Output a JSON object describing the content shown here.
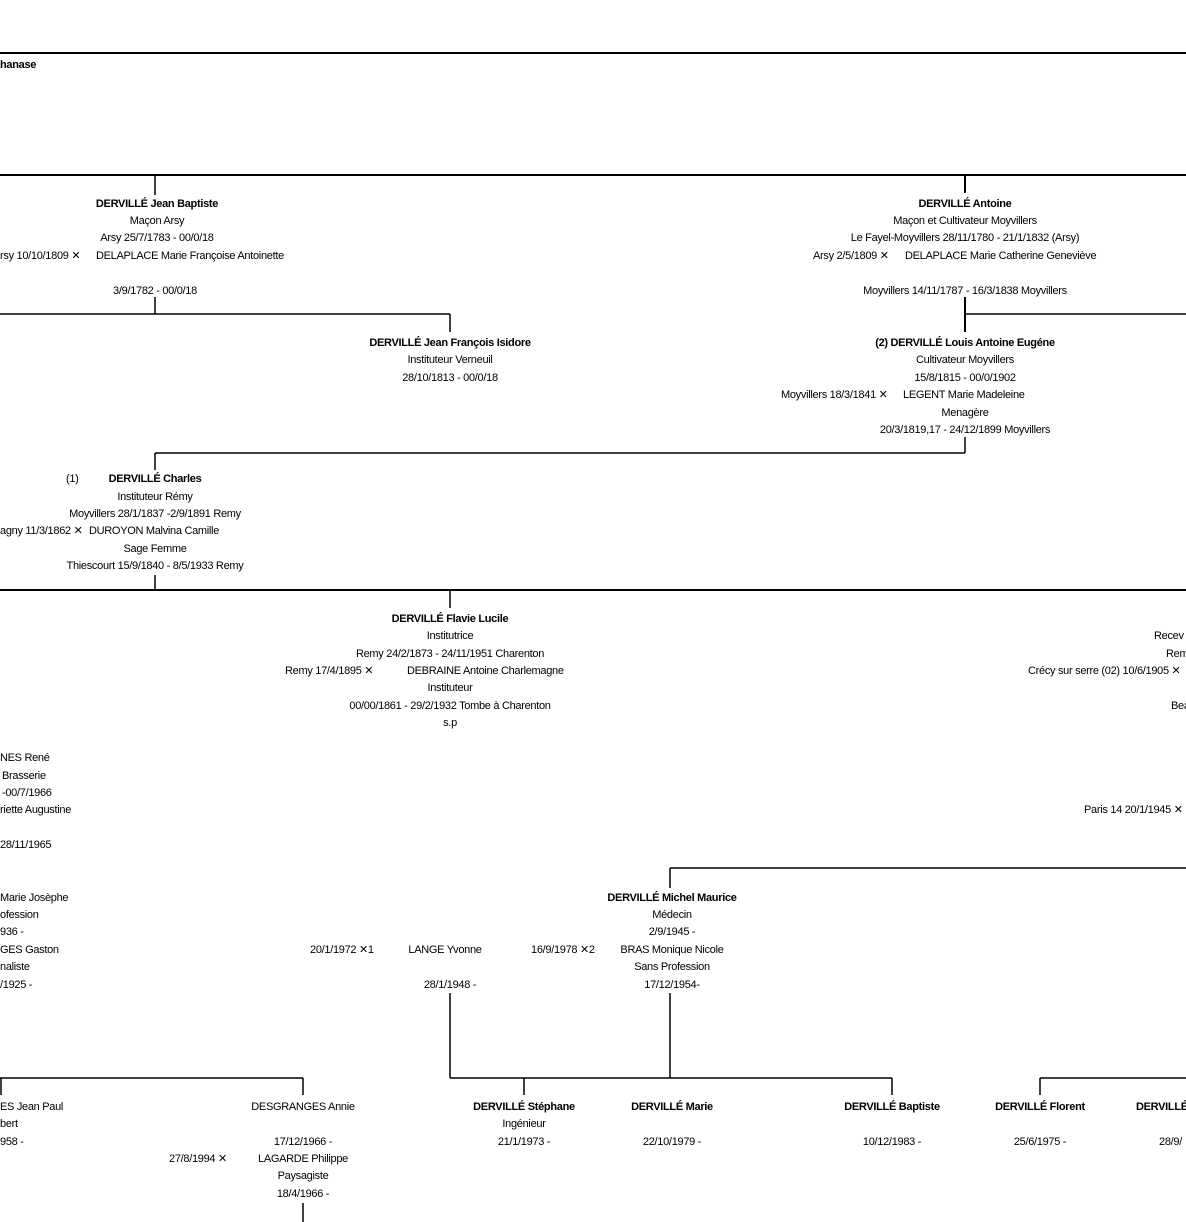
{
  "labels": [
    "hanase",
    "DERVILLÉ Jean Baptiste",
    "Maçon Arsy",
    "Arsy 25/7/1783 - 00/0/18",
    "rsy 10/10/1809 ✕",
    "DELAPLACE Marie Françoise Antoinette",
    "3/9/1782 - 00/0/18",
    "DERVILLÉ Antoine",
    "Maçon et Cultivateur Moyvillers",
    "Le Fayel-Moyvillers 28/11/1780 - 21/1/1832 (Arsy)",
    "Arsy 2/5/1809 ✕",
    "DELAPLACE Marie Catherine Geneviève",
    "Moyvillers 14/11/1787 - 16/3/1838 Moyvillers",
    "DERVILLÉ Jean François Isidore",
    "Instituteur Verneuil",
    "28/10/1813 - 00/0/18",
    "(2) DERVILLÉ Louis Antoine Eugéne",
    "Cultivateur Moyvillers",
    "15/8/1815 - 00/0/1902",
    "Moyvillers 18/3/1841 ✕",
    "LEGENT Marie Madeleine",
    "Menagère",
    "20/3/1819,17 - 24/12/1899 Moyvillers",
    "(1)",
    "DERVILLÉ Charles",
    "Instituteur Rémy",
    "Moyvillers 28/1/1837 -2/9/1891 Remy",
    "agny 11/3/1862 ✕",
    "DUROYON Malvina Camille",
    "Sage Femme",
    "Thiescourt 15/9/1840 - 8/5/1933 Remy",
    "DERVILLÉ Flavie Lucile",
    "Institutrice",
    "Remy 24/2/1873 - 24/11/1951 Charenton",
    "Remy 17/4/1895 ✕",
    "DEBRAINE Antoine Charlemagne",
    "Instituteur",
    "00/00/1861 - 29/2/1932 Tombe à Charenton",
    "s.p",
    "Recev",
    "Rem",
    "Crécy sur serre (02) 10/6/1905 ✕",
    "Bea",
    "Paris 14 20/1/1945 ✕",
    "NES René",
    "Brasserie",
    "-00/7/1966",
    "riette Augustine",
    "28/11/1965",
    "Marie Josèphe",
    "ofession",
    "936 -",
    "GES Gaston",
    "naliste",
    "/1925 -",
    "DERVILLÉ Michel Maurice",
    "Médecin",
    "2/9/1945 -",
    "BRAS Monique Nicole",
    "Sans Profession",
    "17/12/1954-",
    "20/1/1972 ✕1",
    "LANGE Yvonne",
    "16/9/1978 ✕2",
    "28/1/1948 -",
    "ES Jean Paul",
    "bert",
    "958 -",
    "DESGRANGES Annie",
    "17/12/1966 -",
    "27/8/1994 ✕",
    "LAGARDE Philippe",
    "Paysagiste",
    "18/4/1966 -",
    "DERVILLÉ Stéphane",
    "Ingénieur",
    "21/1/1973 -",
    "DERVILLÉ Marie",
    "22/10/1979 -",
    "DERVILLÉ Baptiste",
    "10/12/1983 -",
    "DERVILLÉ Florent",
    "25/6/1975 -",
    "DERVILLÉ",
    "28/9/"
  ]
}
